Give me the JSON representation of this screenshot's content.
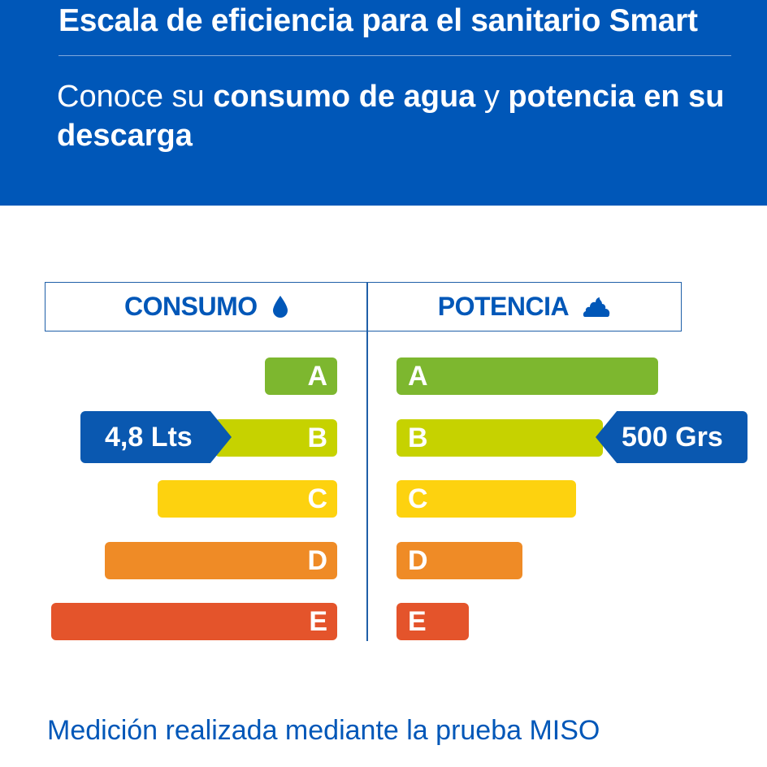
{
  "header": {
    "title": "Escala de eficiencia para el sanitario Smart",
    "subtitle_parts": [
      "Conoce su ",
      "consumo de agua",
      " y ",
      "potencia en su descarga"
    ]
  },
  "columns": {
    "left_title": "CONSUMO",
    "left_icon": "water-drop-icon",
    "right_title": "POTENCIA",
    "right_icon": "poop-icon"
  },
  "ratings": [
    {
      "label": "A",
      "color": "#7db72f"
    },
    {
      "label": "B",
      "color": "#c6d200"
    },
    {
      "label": "C",
      "color": "#fdd20f"
    },
    {
      "label": "D",
      "color": "#ef8b26"
    },
    {
      "label": "E",
      "color": "#e4542b"
    }
  ],
  "consumo_value": "4,8 Lts",
  "potencia_value": "500 Grs",
  "selected_rating": "B",
  "footer": "Medición realizada mediante la prueba MISO",
  "colors": {
    "header_bg": "#0057b8",
    "tag_bg": "#0a58b0",
    "accent_text": "#0057b8"
  }
}
